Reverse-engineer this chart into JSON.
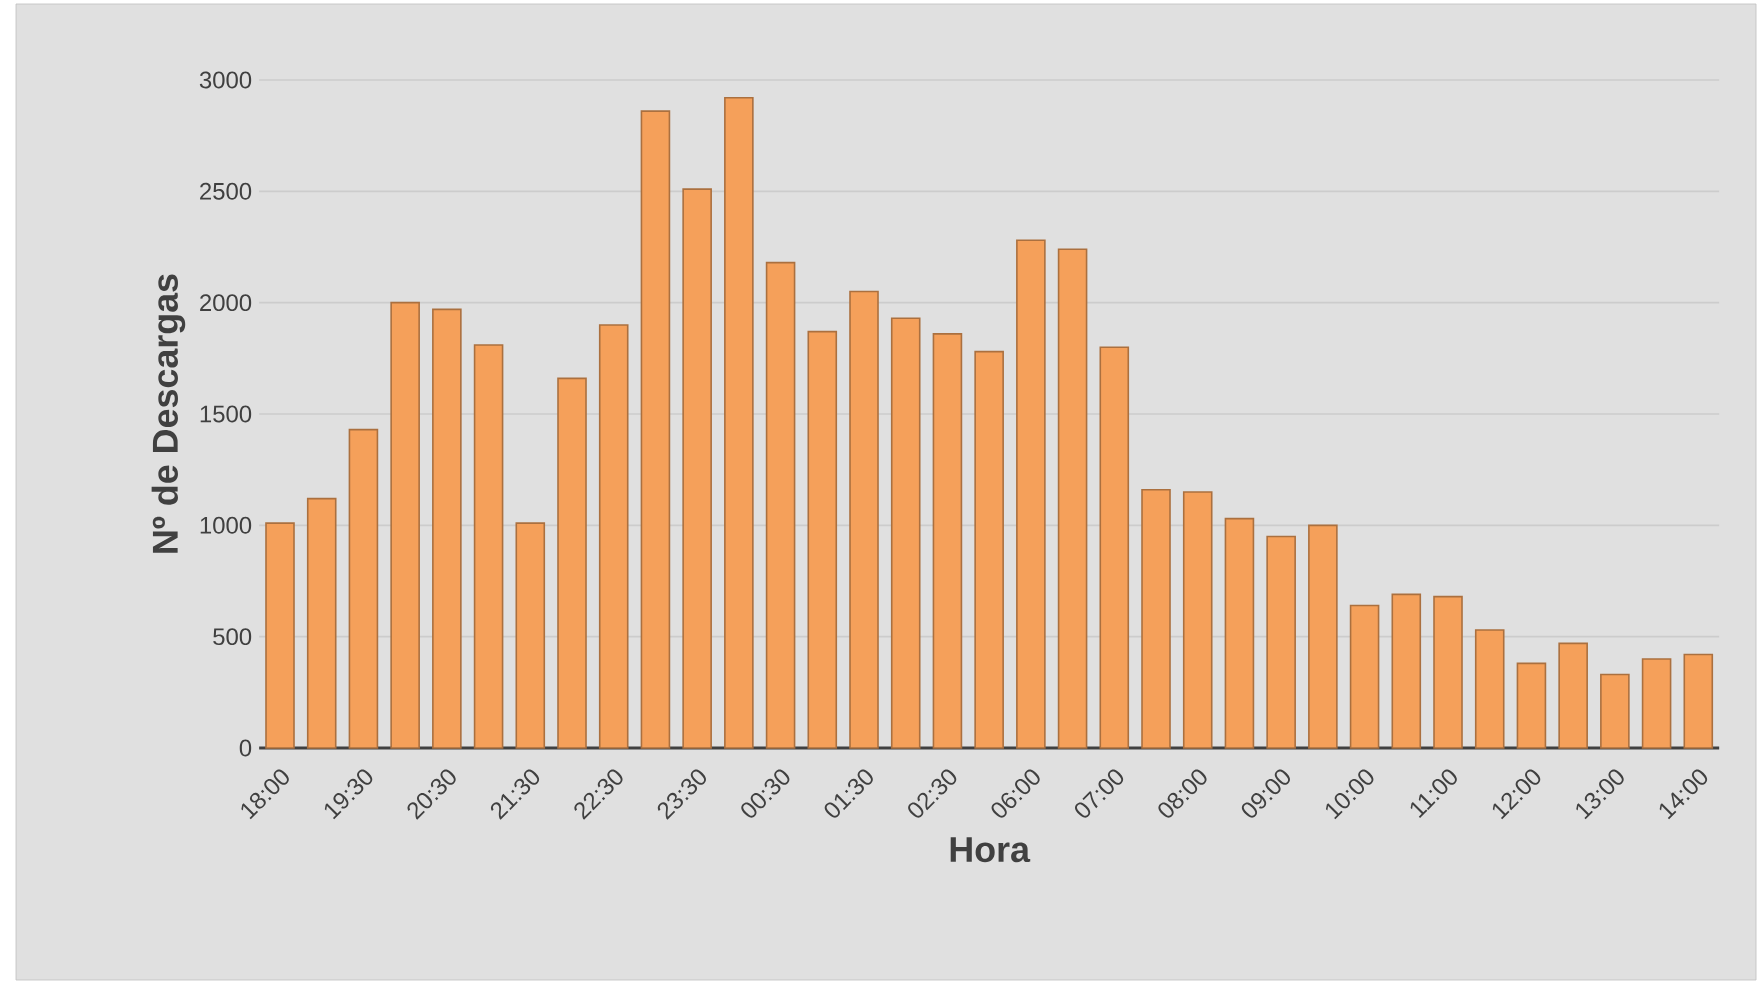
{
  "chart_data": {
    "type": "bar",
    "xlabel": "Hora",
    "ylabel": "Nº de Descargas",
    "categories": [
      "18:00",
      null,
      "19:30",
      null,
      "20:30",
      null,
      "21:30",
      null,
      "22:30",
      null,
      "23:30",
      null,
      "00:30",
      null,
      "01:30",
      null,
      "02:30",
      null,
      "06:00",
      null,
      "07:00",
      null,
      "08:00",
      null,
      "09:00",
      null,
      "10:00",
      null,
      "11:00",
      null,
      "12:00",
      null,
      "13:00",
      null,
      "14:00"
    ],
    "values": [
      1010,
      1120,
      1430,
      2000,
      1970,
      1810,
      1010,
      1660,
      1900,
      2860,
      2510,
      2920,
      2180,
      1870,
      2050,
      1930,
      1860,
      1780,
      2280,
      2240,
      1800,
      1160,
      1150,
      1030,
      950,
      1000,
      640,
      690,
      680,
      530,
      380,
      470,
      330,
      400,
      420
    ],
    "color": "#f5a05a",
    "ylim": [
      0,
      3000
    ],
    "yticks": [
      0,
      500,
      1000,
      1500,
      2000,
      2500,
      3000
    ],
    "grid": "y"
  }
}
